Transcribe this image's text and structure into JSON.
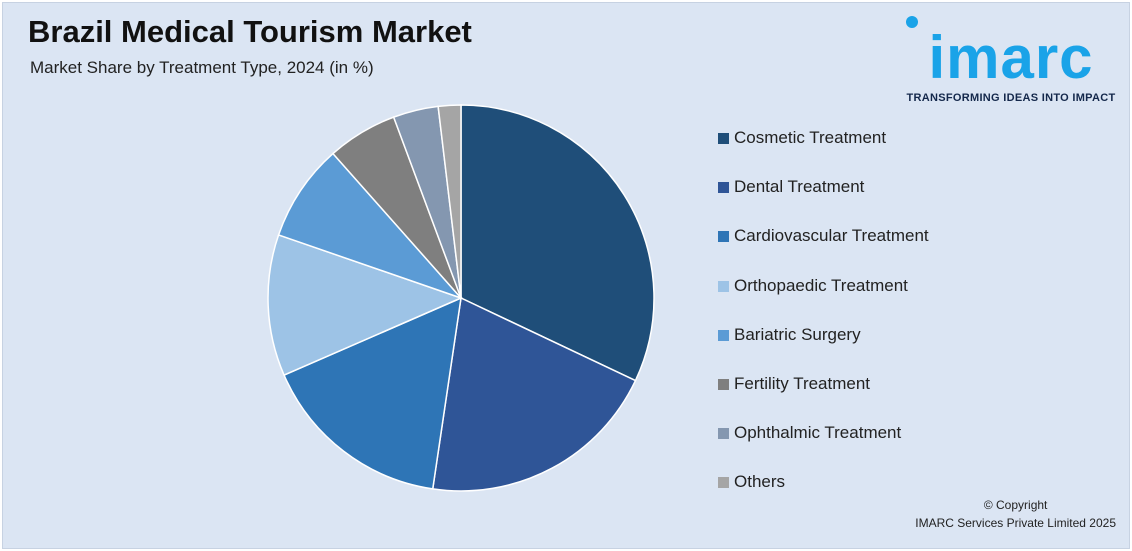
{
  "header": {
    "title": "Brazil Medical Tourism Market",
    "subtitle": "Market Share by Treatment Type, 2024 (in %)"
  },
  "logo": {
    "wordmark": "imarc",
    "tagline": "TRANSFORMING IDEAS INTO IMPACT"
  },
  "chart_data": {
    "type": "pie",
    "title": "Brazil Medical Tourism Market",
    "subtitle": "Market Share by Treatment Type, 2024 (in %)",
    "legend_position": "right",
    "categories": [
      "Cosmetic Treatment",
      "Dental Treatment",
      "Cardiovascular Treatment",
      "Orthopaedic Treatment",
      "Bariatric Surgery",
      "Fertility Treatment",
      "Ophthalmic Treatment",
      "Others"
    ],
    "values": [
      32.2,
      20.4,
      16.2,
      11.9,
      8.2,
      5.9,
      3.8,
      1.9
    ],
    "colors": [
      "#1f4e79",
      "#2f5597",
      "#2e75b6",
      "#9dc3e6",
      "#5b9bd5",
      "#7f7f7f",
      "#8497b0",
      "#a5a5a5"
    ]
  },
  "footer": {
    "copyright_line1": "© Copyright",
    "copyright_line2": "IMARC Services Private Limited 2025"
  }
}
